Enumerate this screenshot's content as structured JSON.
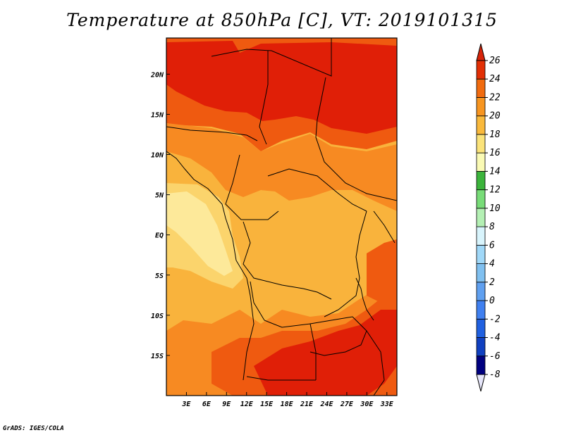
{
  "title": "Temperature at 850hPa [C], VT: 2019101315",
  "credit": "GrADS: IGES/COLA",
  "map": {
    "lon_range": [
      0,
      34.5
    ],
    "lat_range": [
      -20,
      24.5
    ],
    "lon_ticks": [
      {
        "value": 3,
        "label": "3E"
      },
      {
        "value": 6,
        "label": "6E"
      },
      {
        "value": 9,
        "label": "9E"
      },
      {
        "value": 12,
        "label": "12E"
      },
      {
        "value": 15,
        "label": "15E"
      },
      {
        "value": 18,
        "label": "18E"
      },
      {
        "value": 21,
        "label": "21E"
      },
      {
        "value": 24,
        "label": "24E"
      },
      {
        "value": 27,
        "label": "27E"
      },
      {
        "value": 30,
        "label": "30E"
      },
      {
        "value": 33,
        "label": "33E"
      }
    ],
    "lat_ticks": [
      {
        "value": 20,
        "label": "20N"
      },
      {
        "value": 15,
        "label": "15N"
      },
      {
        "value": 10,
        "label": "10N"
      },
      {
        "value": 5,
        "label": "5N"
      },
      {
        "value": 0,
        "label": "EQ"
      },
      {
        "value": -5,
        "label": "5S"
      },
      {
        "value": -10,
        "label": "10S"
      },
      {
        "value": -15,
        "label": "15S"
      }
    ]
  },
  "colorbar": {
    "levels": [
      "-8",
      "-6",
      "-4",
      "-2",
      "0",
      "2",
      "4",
      "6",
      "8",
      "10",
      "12",
      "14",
      "16",
      "18",
      "20",
      "22",
      "24",
      "26"
    ],
    "colors": [
      "#e6e6fa",
      "#000080",
      "#1040c0",
      "#2060e0",
      "#4080f0",
      "#60a0f0",
      "#80c0f0",
      "#a0d8f8",
      "#d8f4fc",
      "#b4f0b4",
      "#78dc78",
      "#3cb43c",
      "#fafab4",
      "#fbe37a",
      "#f9b93c",
      "#f79520",
      "#f16b0f",
      "#e22f05",
      "#d72409"
    ]
  },
  "colors": {
    "t26plus": "#e01f07",
    "t24": "#ef5a10",
    "t22": "#f78a22",
    "t20": "#f9b33c",
    "t18": "#fbd46c",
    "t16": "#fde99a",
    "border": "#000000"
  }
}
